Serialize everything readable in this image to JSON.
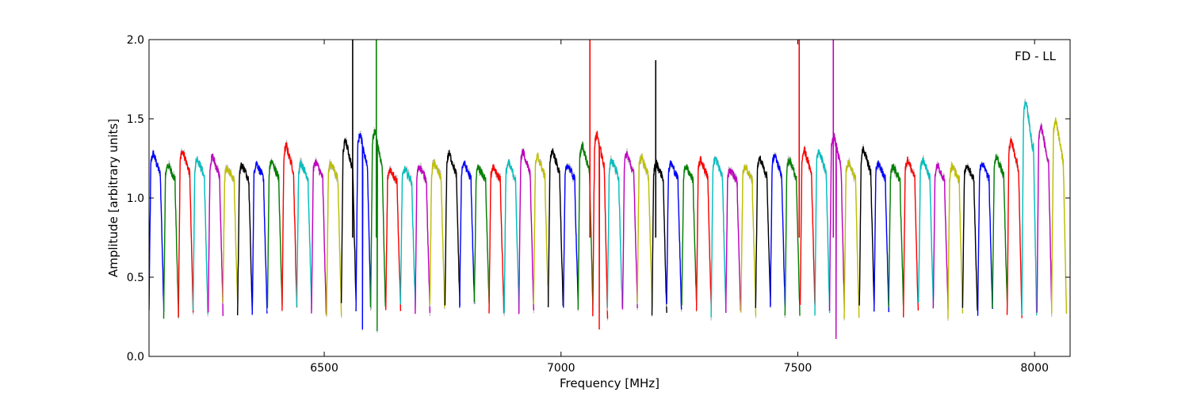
{
  "chart_data": {
    "type": "line",
    "title": "",
    "annotation": "FD - LL",
    "xlabel": "Frequency [MHz]",
    "ylabel": "Amplitude [arbitrary units]",
    "xlim": [
      6130,
      8075
    ],
    "ylim": [
      0.0,
      2.0
    ],
    "xticks": [
      6500,
      7000,
      7500,
      8000
    ],
    "yticks": [
      0.0,
      0.5,
      1.0,
      1.5,
      2.0
    ],
    "xtick_labels": [
      "6500",
      "7000",
      "7500",
      "8000"
    ],
    "ytick_labels": [
      "0.0",
      "0.5",
      "1.0",
      "1.5",
      "2.0"
    ],
    "grid": false,
    "series_colors": [
      "#0000ff",
      "#008000",
      "#ff0000",
      "#00bfbf",
      "#bf00bf",
      "#bfbf00",
      "#000000"
    ],
    "background_trace_color": "#c0c0c0",
    "channel_width_mhz": 31.25,
    "channels": [
      {
        "start": 6130,
        "peak": 1.28
      },
      {
        "start": 6161,
        "peak": 1.21
      },
      {
        "start": 6192,
        "peak": 1.3
      },
      {
        "start": 6223,
        "peak": 1.25
      },
      {
        "start": 6255,
        "peak": 1.26
      },
      {
        "start": 6286,
        "peak": 1.19
      },
      {
        "start": 6317,
        "peak": 1.21
      },
      {
        "start": 6348,
        "peak": 1.22
      },
      {
        "start": 6380,
        "peak": 1.23
      },
      {
        "start": 6411,
        "peak": 1.33
      },
      {
        "start": 6442,
        "peak": 1.22
      },
      {
        "start": 6473,
        "peak": 1.23
      },
      {
        "start": 6505,
        "peak": 1.22
      },
      {
        "start": 6536,
        "peak": 1.36,
        "spike": 2.0,
        "spike_x": 6560
      },
      {
        "start": 6567,
        "peak": 1.4,
        "dip": 0.17
      },
      {
        "start": 6598,
        "peak": 1.42,
        "spike": 2.0,
        "spike_x": 6610,
        "dip": 0.16
      },
      {
        "start": 6630,
        "peak": 1.18
      },
      {
        "start": 6661,
        "peak": 1.18
      },
      {
        "start": 6692,
        "peak": 1.2
      },
      {
        "start": 6723,
        "peak": 1.22
      },
      {
        "start": 6755,
        "peak": 1.28
      },
      {
        "start": 6786,
        "peak": 1.22
      },
      {
        "start": 6817,
        "peak": 1.19
      },
      {
        "start": 6848,
        "peak": 1.2
      },
      {
        "start": 6880,
        "peak": 1.22
      },
      {
        "start": 6911,
        "peak": 1.29
      },
      {
        "start": 6942,
        "peak": 1.26
      },
      {
        "start": 6973,
        "peak": 1.3
      },
      {
        "start": 7005,
        "peak": 1.21
      },
      {
        "start": 7036,
        "peak": 1.33
      },
      {
        "start": 7067,
        "peak": 1.4,
        "spike": 2.0,
        "spike_x": 7061,
        "dip": 0.17
      },
      {
        "start": 7098,
        "peak": 1.24
      },
      {
        "start": 7130,
        "peak": 1.28
      },
      {
        "start": 7161,
        "peak": 1.26
      },
      {
        "start": 7192,
        "peak": 1.22,
        "spike": 1.87,
        "spike_x": 7200
      },
      {
        "start": 7223,
        "peak": 1.22
      },
      {
        "start": 7255,
        "peak": 1.2
      },
      {
        "start": 7286,
        "peak": 1.24
      },
      {
        "start": 7317,
        "peak": 1.25
      },
      {
        "start": 7348,
        "peak": 1.18
      },
      {
        "start": 7380,
        "peak": 1.2
      },
      {
        "start": 7411,
        "peak": 1.25
      },
      {
        "start": 7442,
        "peak": 1.27
      },
      {
        "start": 7473,
        "peak": 1.24
      },
      {
        "start": 7505,
        "peak": 1.3,
        "spike": 2.0,
        "spike_x": 7503
      },
      {
        "start": 7536,
        "peak": 1.3
      },
      {
        "start": 7567,
        "peak": 1.4,
        "spike": 2.0,
        "spike_x": 7575,
        "dip": 0.11
      },
      {
        "start": 7598,
        "peak": 1.22
      },
      {
        "start": 7630,
        "peak": 1.31
      },
      {
        "start": 7661,
        "peak": 1.22
      },
      {
        "start": 7692,
        "peak": 1.2
      },
      {
        "start": 7723,
        "peak": 1.24
      },
      {
        "start": 7755,
        "peak": 1.24
      },
      {
        "start": 7786,
        "peak": 1.21
      },
      {
        "start": 7817,
        "peak": 1.2
      },
      {
        "start": 7848,
        "peak": 1.21
      },
      {
        "start": 7880,
        "peak": 1.22
      },
      {
        "start": 7911,
        "peak": 1.26
      },
      {
        "start": 7942,
        "peak": 1.36
      },
      {
        "start": 7973,
        "peak": 1.61
      },
      {
        "start": 8005,
        "peak": 1.45
      },
      {
        "start": 8036,
        "peak": 1.49
      }
    ]
  }
}
